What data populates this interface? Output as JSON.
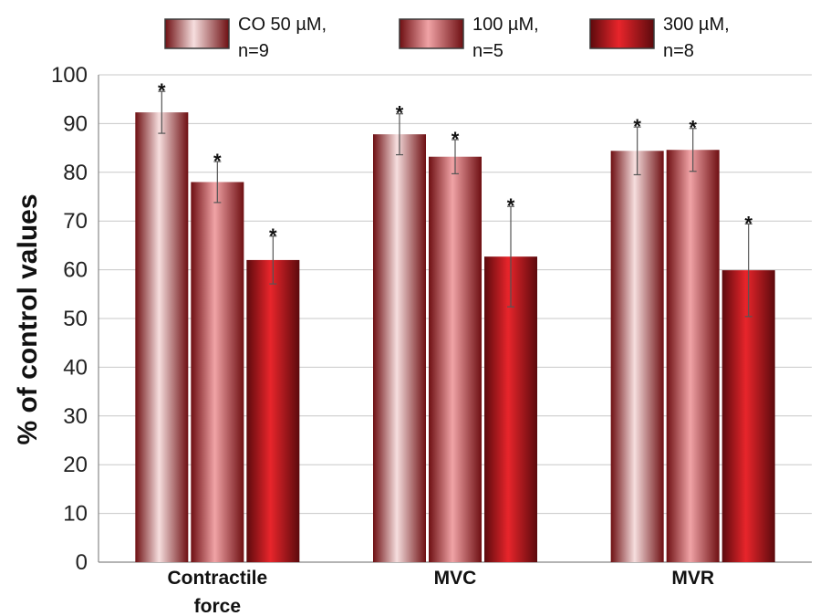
{
  "chart_data": {
    "type": "bar",
    "title": "",
    "xlabel": "",
    "ylabel": "% of control values",
    "ylim": [
      0,
      100
    ],
    "yticks": [
      0,
      10,
      20,
      30,
      40,
      50,
      60,
      70,
      80,
      90,
      100
    ],
    "grid": true,
    "legend_position": "top",
    "categories": [
      [
        "Contractile",
        "force"
      ],
      [
        "MVC"
      ],
      [
        "MVR"
      ]
    ],
    "significance_marker": "*",
    "series": [
      {
        "name": [
          "CO  50 µM,",
          "n=9"
        ],
        "values": [
          92.3,
          87.8,
          84.4
        ],
        "errors": [
          4.3,
          4.2,
          4.9
        ],
        "colors": [
          "#6e0f12",
          "#f6dede",
          "#6e0f12"
        ]
      },
      {
        "name": [
          "100 µM,",
          "n=5"
        ],
        "values": [
          78.0,
          83.2,
          84.6
        ],
        "errors": [
          4.2,
          3.5,
          4.4
        ],
        "colors": [
          "#6e0f12",
          "#f0a3a6",
          "#6e0f12"
        ]
      },
      {
        "name": [
          "300 µM,",
          "n=8"
        ],
        "values": [
          62.0,
          62.7,
          59.9
        ],
        "errors": [
          4.9,
          10.3,
          9.5
        ],
        "colors": [
          "#5c0a0d",
          "#e8252b",
          "#5c0a0d"
        ]
      }
    ]
  }
}
